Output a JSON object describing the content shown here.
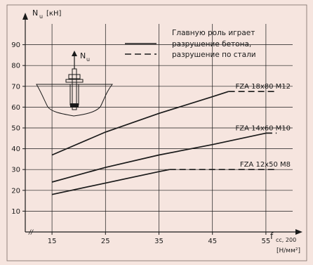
{
  "chart_data": {
    "type": "line",
    "ylabel": "N",
    "ylabel_sub": "u",
    "ylabel_unit": "[кН]",
    "xlabel": "f",
    "xlabel_sub": "cc, 200",
    "xlabel_unit": "[Н/мм²]",
    "xlim": [
      10,
      60
    ],
    "ylim": [
      0,
      100
    ],
    "x_ticks": [
      15,
      25,
      35,
      45,
      55
    ],
    "y_ticks": [
      10,
      20,
      30,
      40,
      50,
      60,
      70,
      80,
      90
    ],
    "grid": true,
    "axis_break_glyph": "//",
    "legend": {
      "position": "top-right",
      "entries": [
        {
          "label_lines": [
            "Главную роль играет",
            "разрушение бетона,"
          ],
          "style": "solid"
        },
        {
          "label_lines": [
            "разрушение по стали"
          ],
          "style": "dashed"
        }
      ]
    },
    "inset_label": "N",
    "inset_label_sub": "u",
    "series": [
      {
        "name": "FZA  18x80  M12",
        "concrete": {
          "x": [
            15,
            25,
            35,
            45,
            48
          ],
          "y": [
            37,
            48,
            57,
            65,
            67.5
          ]
        },
        "steel": {
          "x": [
            48,
            57
          ],
          "y": [
            67.5,
            67.5
          ]
        }
      },
      {
        "name": "FZA  14x60  M10",
        "concrete": {
          "x": [
            15,
            25,
            35,
            45,
            55
          ],
          "y": [
            24,
            31,
            37,
            42,
            47.5
          ]
        },
        "steel": {
          "x": [
            55,
            57
          ],
          "y": [
            47.5,
            47.5
          ]
        }
      },
      {
        "name": "FZA  12x50  M8",
        "concrete": {
          "x": [
            15,
            25,
            35,
            37
          ],
          "y": [
            18,
            23.5,
            29,
            30
          ]
        },
        "steel": {
          "x": [
            37,
            57
          ],
          "y": [
            30,
            30
          ]
        }
      }
    ],
    "colors": {
      "background": "#f6e5df",
      "ink": "#1a1a1a"
    }
  }
}
